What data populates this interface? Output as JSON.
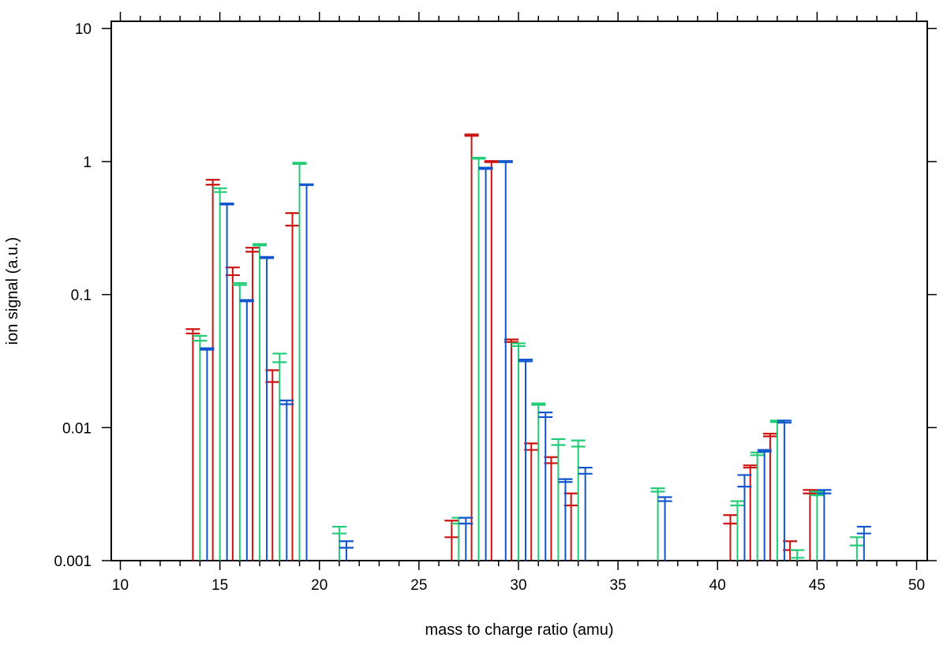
{
  "chart_data": {
    "type": "bar",
    "subtype": "stick spectrum with error-bar caps (three series, log y)",
    "xlabel": "mass to charge ratio (amu)",
    "ylabel": "ion signal (a.u.)",
    "x_scale": "linear",
    "y_scale": "log",
    "xlim": [
      10,
      50
    ],
    "ylim": [
      0.001,
      10
    ],
    "x_ticks": [
      "10",
      "15",
      "20",
      "25",
      "30",
      "35",
      "40",
      "45",
      "50"
    ],
    "x_tick_values": [
      10,
      15,
      20,
      25,
      30,
      35,
      40,
      45,
      50
    ],
    "y_ticks": [
      "0.001",
      "0.01",
      "0.1",
      "1",
      "10"
    ],
    "y_tick_values": [
      0.001,
      0.01,
      0.1,
      1,
      10
    ],
    "baseline": 0.001,
    "grid": false,
    "mirror_ticks": true,
    "series": [
      {
        "color": "#cc1111",
        "points": [
          {
            "mz": 14,
            "value": 0.053,
            "lo": 0.051,
            "hi": 0.055
          },
          {
            "mz": 15,
            "value": 0.7,
            "lo": 0.67,
            "hi": 0.73
          },
          {
            "mz": 16,
            "value": 0.15,
            "lo": 0.14,
            "hi": 0.16
          },
          {
            "mz": 17,
            "value": 0.215,
            "lo": 0.21,
            "hi": 0.225
          },
          {
            "mz": 18,
            "value": 0.025,
            "lo": 0.022,
            "hi": 0.027
          },
          {
            "mz": 19,
            "value": 0.37,
            "lo": 0.33,
            "hi": 0.41
          },
          {
            "mz": 27,
            "value": 0.0017,
            "lo": 0.0015,
            "hi": 0.002
          },
          {
            "mz": 28,
            "value": 1.58,
            "lo": 1.56,
            "hi": 1.6
          },
          {
            "mz": 29,
            "value": 1.0,
            "lo": 0.99,
            "hi": 1.01
          },
          {
            "mz": 30,
            "value": 0.045,
            "lo": 0.044,
            "hi": 0.046
          },
          {
            "mz": 31,
            "value": 0.0072,
            "lo": 0.0068,
            "hi": 0.0076
          },
          {
            "mz": 32,
            "value": 0.0057,
            "lo": 0.0054,
            "hi": 0.006
          },
          {
            "mz": 33,
            "value": 0.0029,
            "lo": 0.0026,
            "hi": 0.0032
          },
          {
            "mz": 41,
            "value": 0.0021,
            "lo": 0.0019,
            "hi": 0.0022
          },
          {
            "mz": 42,
            "value": 0.0051,
            "lo": 0.005,
            "hi": 0.0052
          },
          {
            "mz": 43,
            "value": 0.0088,
            "lo": 0.0086,
            "hi": 0.009
          },
          {
            "mz": 44,
            "value": 0.0013,
            "lo": 0.0012,
            "hi": 0.0014
          },
          {
            "mz": 45,
            "value": 0.0033,
            "lo": 0.0032,
            "hi": 0.0034
          }
        ]
      },
      {
        "color": "#22cc77",
        "points": [
          {
            "mz": 14,
            "value": 0.047,
            "lo": 0.045,
            "hi": 0.049
          },
          {
            "mz": 15,
            "value": 0.61,
            "lo": 0.59,
            "hi": 0.63
          },
          {
            "mz": 16,
            "value": 0.12,
            "lo": 0.118,
            "hi": 0.122
          },
          {
            "mz": 17,
            "value": 0.237,
            "lo": 0.234,
            "hi": 0.24
          },
          {
            "mz": 18,
            "value": 0.033,
            "lo": 0.031,
            "hi": 0.036
          },
          {
            "mz": 19,
            "value": 0.97,
            "lo": 0.96,
            "hi": 0.98
          },
          {
            "mz": 21,
            "value": 0.0017,
            "lo": 0.0016,
            "hi": 0.0018
          },
          {
            "mz": 27,
            "value": 0.002,
            "lo": 0.0019,
            "hi": 0.0021
          },
          {
            "mz": 28,
            "value": 1.06,
            "lo": 1.05,
            "hi": 1.07
          },
          {
            "mz": 30,
            "value": 0.042,
            "lo": 0.041,
            "hi": 0.043
          },
          {
            "mz": 31,
            "value": 0.015,
            "lo": 0.0148,
            "hi": 0.0152
          },
          {
            "mz": 32,
            "value": 0.0078,
            "lo": 0.0074,
            "hi": 0.0082
          },
          {
            "mz": 33,
            "value": 0.0076,
            "lo": 0.0072,
            "hi": 0.008
          },
          {
            "mz": 37,
            "value": 0.0034,
            "lo": 0.0033,
            "hi": 0.0035
          },
          {
            "mz": 41,
            "value": 0.0027,
            "lo": 0.0026,
            "hi": 0.0028
          },
          {
            "mz": 42,
            "value": 0.0063,
            "lo": 0.0062,
            "hi": 0.0065
          },
          {
            "mz": 43,
            "value": 0.0111,
            "lo": 0.011,
            "hi": 0.0113
          },
          {
            "mz": 44,
            "value": 0.0011,
            "lo": 0.00105,
            "hi": 0.0012
          },
          {
            "mz": 45,
            "value": 0.0032,
            "lo": 0.0031,
            "hi": 0.0033
          },
          {
            "mz": 47,
            "value": 0.0014,
            "lo": 0.0013,
            "hi": 0.0015
          }
        ]
      },
      {
        "color": "#1155cc",
        "points": [
          {
            "mz": 14,
            "value": 0.039,
            "lo": 0.0385,
            "hi": 0.0395
          },
          {
            "mz": 15,
            "value": 0.48,
            "lo": 0.475,
            "hi": 0.485
          },
          {
            "mz": 16,
            "value": 0.09,
            "lo": 0.089,
            "hi": 0.091
          },
          {
            "mz": 17,
            "value": 0.19,
            "lo": 0.188,
            "hi": 0.192
          },
          {
            "mz": 18,
            "value": 0.0155,
            "lo": 0.015,
            "hi": 0.016
          },
          {
            "mz": 19,
            "value": 0.67,
            "lo": 0.665,
            "hi": 0.675
          },
          {
            "mz": 21,
            "value": 0.0013,
            "lo": 0.00125,
            "hi": 0.0014
          },
          {
            "mz": 27,
            "value": 0.002,
            "lo": 0.0019,
            "hi": 0.0021
          },
          {
            "mz": 28,
            "value": 0.89,
            "lo": 0.88,
            "hi": 0.9
          },
          {
            "mz": 29,
            "value": 1.0,
            "lo": 0.99,
            "hi": 1.01
          },
          {
            "mz": 30,
            "value": 0.032,
            "lo": 0.0315,
            "hi": 0.0325
          },
          {
            "mz": 31,
            "value": 0.0125,
            "lo": 0.012,
            "hi": 0.013
          },
          {
            "mz": 32,
            "value": 0.004,
            "lo": 0.0039,
            "hi": 0.0041
          },
          {
            "mz": 33,
            "value": 0.0047,
            "lo": 0.0045,
            "hi": 0.005
          },
          {
            "mz": 37,
            "value": 0.0029,
            "lo": 0.0028,
            "hi": 0.003
          },
          {
            "mz": 41,
            "value": 0.004,
            "lo": 0.0036,
            "hi": 0.0044
          },
          {
            "mz": 42,
            "value": 0.0067,
            "lo": 0.0066,
            "hi": 0.0068
          },
          {
            "mz": 43,
            "value": 0.0111,
            "lo": 0.0109,
            "hi": 0.0113
          },
          {
            "mz": 45,
            "value": 0.0033,
            "lo": 0.0032,
            "hi": 0.0034
          },
          {
            "mz": 47,
            "value": 0.0017,
            "lo": 0.0016,
            "hi": 0.0018
          }
        ]
      }
    ]
  }
}
